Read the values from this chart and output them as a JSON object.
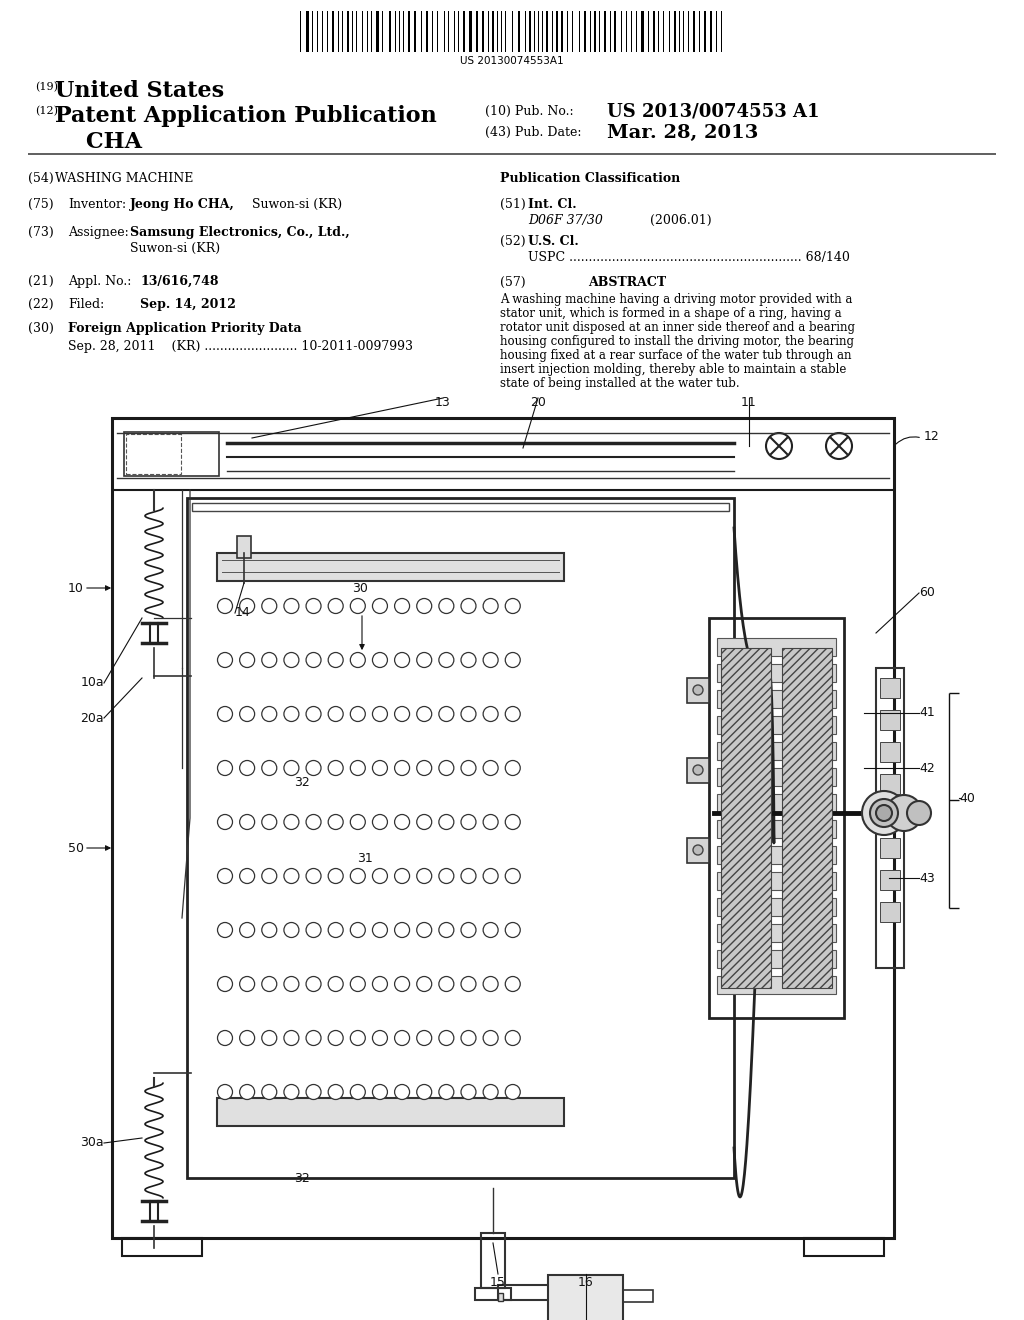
{
  "bg": "#ffffff",
  "barcode_text": "US 20130074553A1",
  "header_19": "(19)",
  "header_19_bold": "United States",
  "header_12": "(12)",
  "header_12_bold": "Patent Application Publication",
  "header_cha": "    CHA",
  "pub_no_label": "(10) Pub. No.:",
  "pub_no_value": "US 2013/0074553 A1",
  "pub_date_label": "(43) Pub. Date:",
  "pub_date_value": "Mar. 28, 2013",
  "f54_num": "(54)",
  "f54_val": "WASHING MACHINE",
  "f75_num": "(75)",
  "f75_lbl": "Inventor:",
  "f75_bold": "Jeong Ho CHA,",
  "f75_rest": " Suwon-si (KR)",
  "f73_num": "(73)",
  "f73_lbl": "Assignee:",
  "f73_bold": "Samsung Electronics, Co., Ltd.,",
  "f73_rest": "Suwon-si (KR)",
  "f21_num": "(21)",
  "f21_lbl": "Appl. No.:",
  "f21_val": "13/616,748",
  "f22_num": "(22)",
  "f22_lbl": "Filed:",
  "f22_val": "Sep. 14, 2012",
  "f30_num": "(30)",
  "f30_val": "Foreign Application Priority Data",
  "f30_data": "Sep. 28, 2011    (KR) ........................ 10-2011-0097993",
  "pub_class": "Publication Classification",
  "f51_num": "(51)",
  "f51_lbl": "Int. Cl.",
  "f51_class": "D06F 37/30",
  "f51_year": "(2006.01)",
  "f52_num": "(52)",
  "f52_lbl": "U.S. Cl.",
  "f52_uspc": "USPC ............................................................ 68/140",
  "f57_num": "(57)",
  "f57_title": "ABSTRACT",
  "abstract": "A washing machine having a driving motor provided with a stator unit, which is formed in a shape of a ring, having a rotator unit disposed at an inner side thereof and a bearing housing configured to install the driving motor, the bearing housing fixed at a rear surface of the water tub through an insert injection molding, thereby able to maintain a stable state of being installed at the water tub."
}
